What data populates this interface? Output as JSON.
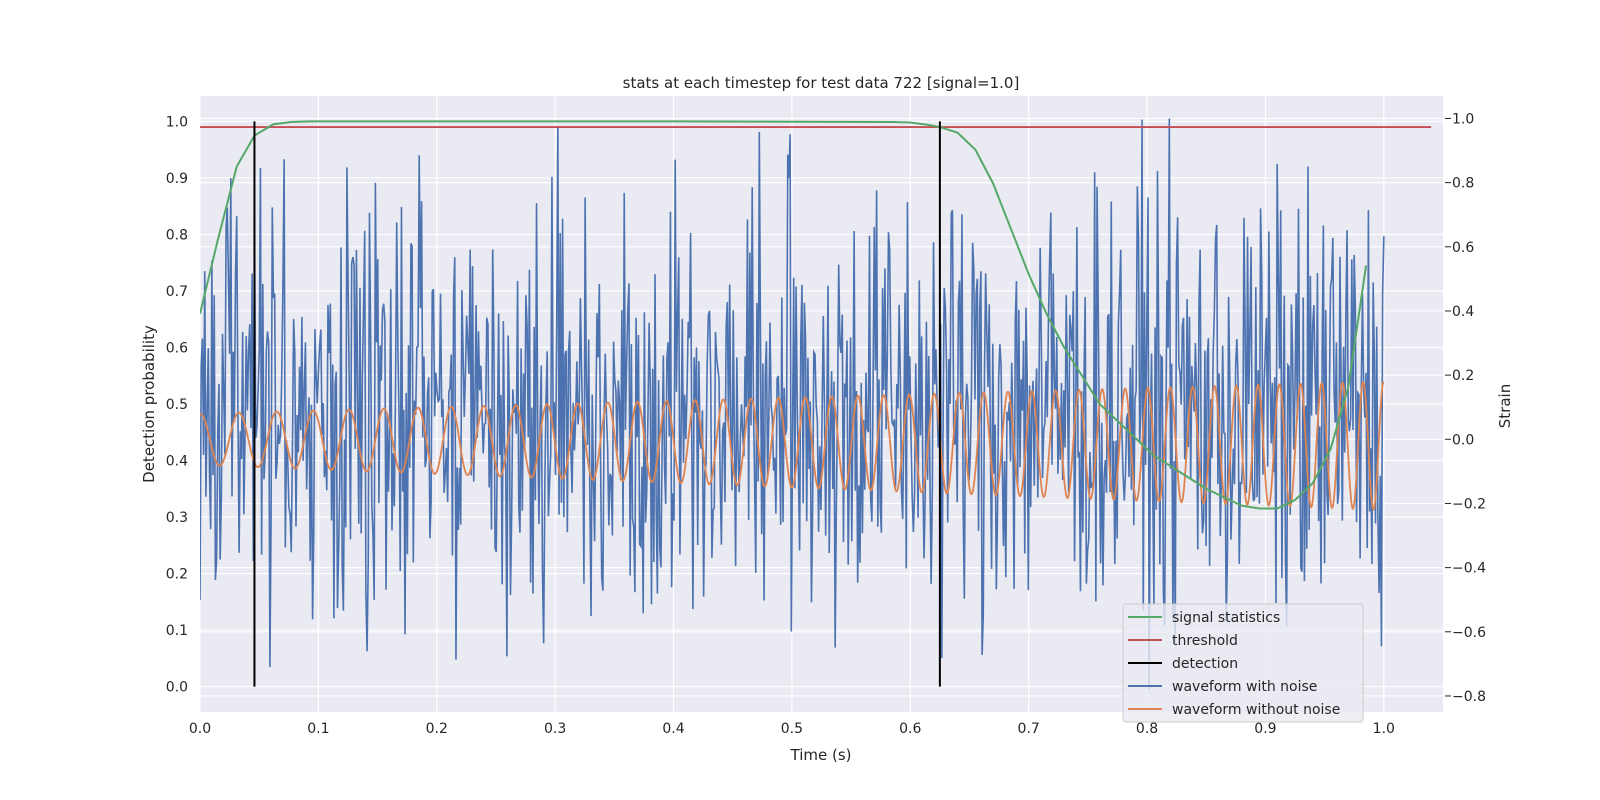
{
  "chart_data": {
    "type": "line",
    "title": "stats at each timestep for test data 722 [signal=1.0]",
    "xlabel": "Time (s)",
    "ylabel_left": "Detection probability",
    "ylabel_right": "Strain",
    "xlim": [
      0.0,
      1.05
    ],
    "ylim_left": [
      -0.045,
      1.045
    ],
    "ylim_right": [
      -0.85,
      1.07
    ],
    "grid": true,
    "legend_position": "lower-right",
    "x_ticks": [
      "0.0",
      "0.1",
      "0.2",
      "0.3",
      "0.4",
      "0.5",
      "0.6",
      "0.7",
      "0.8",
      "0.9",
      "1.0"
    ],
    "y_left_ticks": [
      "0.0",
      "0.1",
      "0.2",
      "0.3",
      "0.4",
      "0.5",
      "0.6",
      "0.7",
      "0.8",
      "0.9",
      "1.0"
    ],
    "y_right_ticks": [
      "−0.8",
      "−0.6",
      "−0.4",
      "−0.2",
      "0.0",
      "0.2",
      "0.4",
      "0.6",
      "0.8",
      "1.0"
    ],
    "series": [
      {
        "name": "signal statistics",
        "axis": "left",
        "color": "#55a868",
        "x": [
          0.0,
          0.015,
          0.031,
          0.046,
          0.062,
          0.077,
          0.092,
          0.2,
          0.4,
          0.585,
          0.6,
          0.615,
          0.625,
          0.64,
          0.655,
          0.67,
          0.685,
          0.7,
          0.715,
          0.73,
          0.745,
          0.76,
          0.775,
          0.79,
          0.805,
          0.82,
          0.835,
          0.85,
          0.865,
          0.88,
          0.895,
          0.91,
          0.925,
          0.94,
          0.955,
          0.97,
          0.985
        ],
        "y": [
          0.66,
          0.79,
          0.92,
          0.975,
          0.995,
          0.999,
          1.0,
          1.0,
          1.0,
          0.999,
          0.998,
          0.994,
          0.99,
          0.98,
          0.95,
          0.89,
          0.81,
          0.73,
          0.66,
          0.6,
          0.55,
          0.5,
          0.47,
          0.44,
          0.41,
          0.39,
          0.37,
          0.35,
          0.335,
          0.32,
          0.315,
          0.315,
          0.33,
          0.36,
          0.42,
          0.53,
          0.745
        ]
      },
      {
        "name": "threshold",
        "axis": "left",
        "color": "#c44e52",
        "x": [
          0.0,
          1.04
        ],
        "y": [
          0.99,
          0.99
        ]
      },
      {
        "name": "detection",
        "axis": "left",
        "color": "#000000",
        "lines_at_x": [
          0.046,
          0.625
        ],
        "ymin": 0.0,
        "ymax": 1.0
      },
      {
        "name": "waveform with noise",
        "axis": "right",
        "color": "#4c72b0",
        "x_start": 0.0,
        "x_end": 1.0,
        "n_points": 1000,
        "amplitude_range": [
          -0.78,
          1.0
        ]
      },
      {
        "name": "waveform without noise",
        "axis": "right",
        "color": "#dd8452",
        "x_start": 0.0,
        "x_end": 1.0,
        "freq_start_hz": 30,
        "freq_end_hz": 58,
        "amp_start": 0.08,
        "amp_end": 0.2,
        "amp_range": [
          -0.2,
          0.2
        ]
      }
    ]
  }
}
